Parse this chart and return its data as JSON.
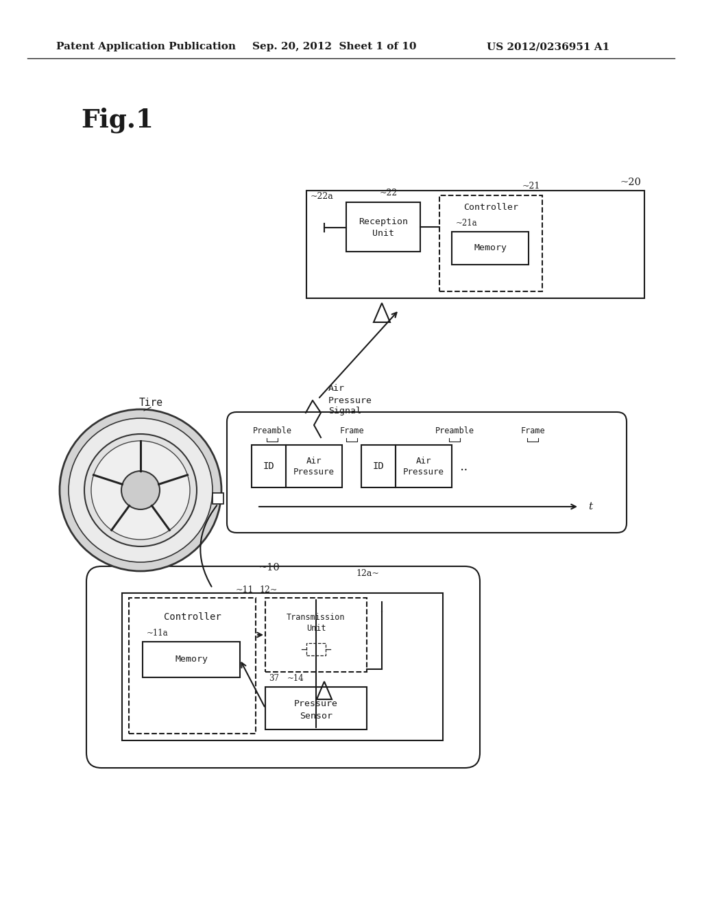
{
  "bg_color": "#ffffff",
  "text_color": "#1a1a1a",
  "header_left": "Patent Application Publication",
  "header_mid": "Sep. 20, 2012  Sheet 1 of 10",
  "header_right": "US 2012/0236951 A1",
  "fig_label": "Fig.1"
}
